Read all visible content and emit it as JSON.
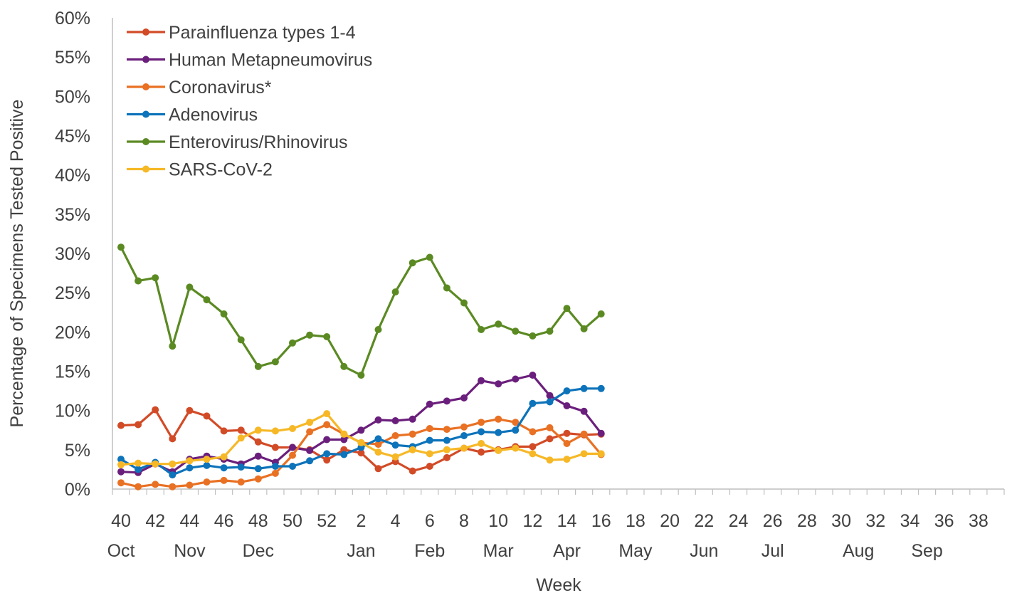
{
  "chart_data": {
    "type": "line",
    "xlabel": "Week",
    "ylabel": "Percentage of Specimens Tested Positive",
    "ylim": [
      0,
      60
    ],
    "y_ticks": [
      "0%",
      "5%",
      "10%",
      "15%",
      "20%",
      "25%",
      "30%",
      "35%",
      "40%",
      "45%",
      "50%",
      "55%",
      "60%"
    ],
    "weeks": [
      "40",
      "41",
      "42",
      "43",
      "44",
      "45",
      "46",
      "47",
      "48",
      "49",
      "50",
      "51",
      "52",
      "1",
      "2",
      "3",
      "4",
      "5",
      "6",
      "7",
      "8",
      "9",
      "10",
      "11",
      "12",
      "13",
      "14",
      "15",
      "16",
      "17",
      "18",
      "19",
      "20",
      "21",
      "22",
      "23",
      "24",
      "25",
      "26",
      "27",
      "28",
      "29",
      "30",
      "31",
      "32",
      "33",
      "34",
      "35",
      "36",
      "37",
      "38",
      "39"
    ],
    "week_tick_labels": [
      "40",
      "42",
      "44",
      "46",
      "48",
      "50",
      "52",
      "2",
      "4",
      "6",
      "8",
      "10",
      "12",
      "14",
      "16",
      "18",
      "20",
      "22",
      "24",
      "26",
      "28",
      "30",
      "32",
      "34",
      "36",
      "38"
    ],
    "month_labels": [
      {
        "label": "Oct",
        "week": "40"
      },
      {
        "label": "Nov",
        "week": "44"
      },
      {
        "label": "Dec",
        "week": "48"
      },
      {
        "label": "Jan",
        "week": "2"
      },
      {
        "label": "Feb",
        "week": "6"
      },
      {
        "label": "Mar",
        "week": "10"
      },
      {
        "label": "Apr",
        "week": "14"
      },
      {
        "label": "May",
        "week": "18"
      },
      {
        "label": "Jun",
        "week": "22"
      },
      {
        "label": "Jul",
        "week": "26"
      },
      {
        "label": "Aug",
        "week": "31"
      },
      {
        "label": "Sep",
        "week": "35"
      }
    ],
    "legend_position": "top-left",
    "grid": false,
    "series": [
      {
        "name": "Parainfluenza types 1-4",
        "color": "#D24B27",
        "values": [
          8.1,
          8.2,
          10.1,
          6.4,
          10.0,
          9.3,
          7.4,
          7.5,
          6.0,
          5.3,
          5.3,
          5.0,
          3.7,
          5.0,
          4.6,
          2.6,
          3.5,
          2.3,
          2.9,
          4.0,
          5.2,
          4.7,
          5.0,
          5.4,
          5.4,
          6.4,
          7.1,
          6.9,
          7.0
        ]
      },
      {
        "name": "Human Metapneumovirus",
        "color": "#6B1F7C",
        "values": [
          2.2,
          2.1,
          3.2,
          2.2,
          3.8,
          4.2,
          3.8,
          3.2,
          4.2,
          3.4,
          5.3,
          4.9,
          6.3,
          6.3,
          7.5,
          8.8,
          8.7,
          8.9,
          10.8,
          11.2,
          11.6,
          13.8,
          13.4,
          14.0,
          14.5,
          11.9,
          10.6,
          9.9,
          7.1
        ]
      },
      {
        "name": "Coronavirus*",
        "color": "#E97124",
        "values": [
          0.8,
          0.3,
          0.6,
          0.3,
          0.5,
          0.9,
          1.1,
          0.9,
          1.3,
          2.0,
          4.3,
          7.3,
          8.2,
          7.0,
          5.9,
          5.7,
          6.8,
          7.0,
          7.7,
          7.6,
          7.9,
          8.5,
          8.9,
          8.5,
          7.3,
          7.8,
          5.8,
          7.0,
          4.4
        ]
      },
      {
        "name": "Adenovirus",
        "color": "#0D73BA",
        "values": [
          3.8,
          2.5,
          3.4,
          1.8,
          2.7,
          3.0,
          2.7,
          2.8,
          2.6,
          2.9,
          2.9,
          3.6,
          4.5,
          4.4,
          5.3,
          6.4,
          5.6,
          5.4,
          6.2,
          6.2,
          6.8,
          7.3,
          7.2,
          7.5,
          10.9,
          11.1,
          12.5,
          12.8,
          12.8
        ]
      },
      {
        "name": "Enterovirus/Rhinovirus",
        "color": "#5B8A23",
        "values": [
          30.8,
          26.5,
          26.9,
          18.2,
          25.7,
          24.1,
          22.3,
          19.0,
          15.6,
          16.2,
          18.6,
          19.6,
          19.4,
          15.6,
          14.5,
          20.3,
          25.1,
          28.8,
          29.5,
          25.6,
          23.7,
          20.3,
          21.0,
          20.1,
          19.5,
          20.1,
          23.0,
          20.4,
          22.3
        ]
      },
      {
        "name": "SARS-CoV-2",
        "color": "#F6B826",
        "values": [
          3.1,
          3.3,
          3.2,
          3.2,
          3.6,
          3.8,
          4.1,
          6.5,
          7.5,
          7.4,
          7.7,
          8.5,
          9.6,
          7.0,
          5.9,
          4.7,
          4.1,
          5.0,
          4.5,
          5.0,
          5.2,
          5.8,
          4.9,
          5.2,
          4.5,
          3.7,
          3.8,
          4.5,
          4.5
        ]
      }
    ]
  }
}
